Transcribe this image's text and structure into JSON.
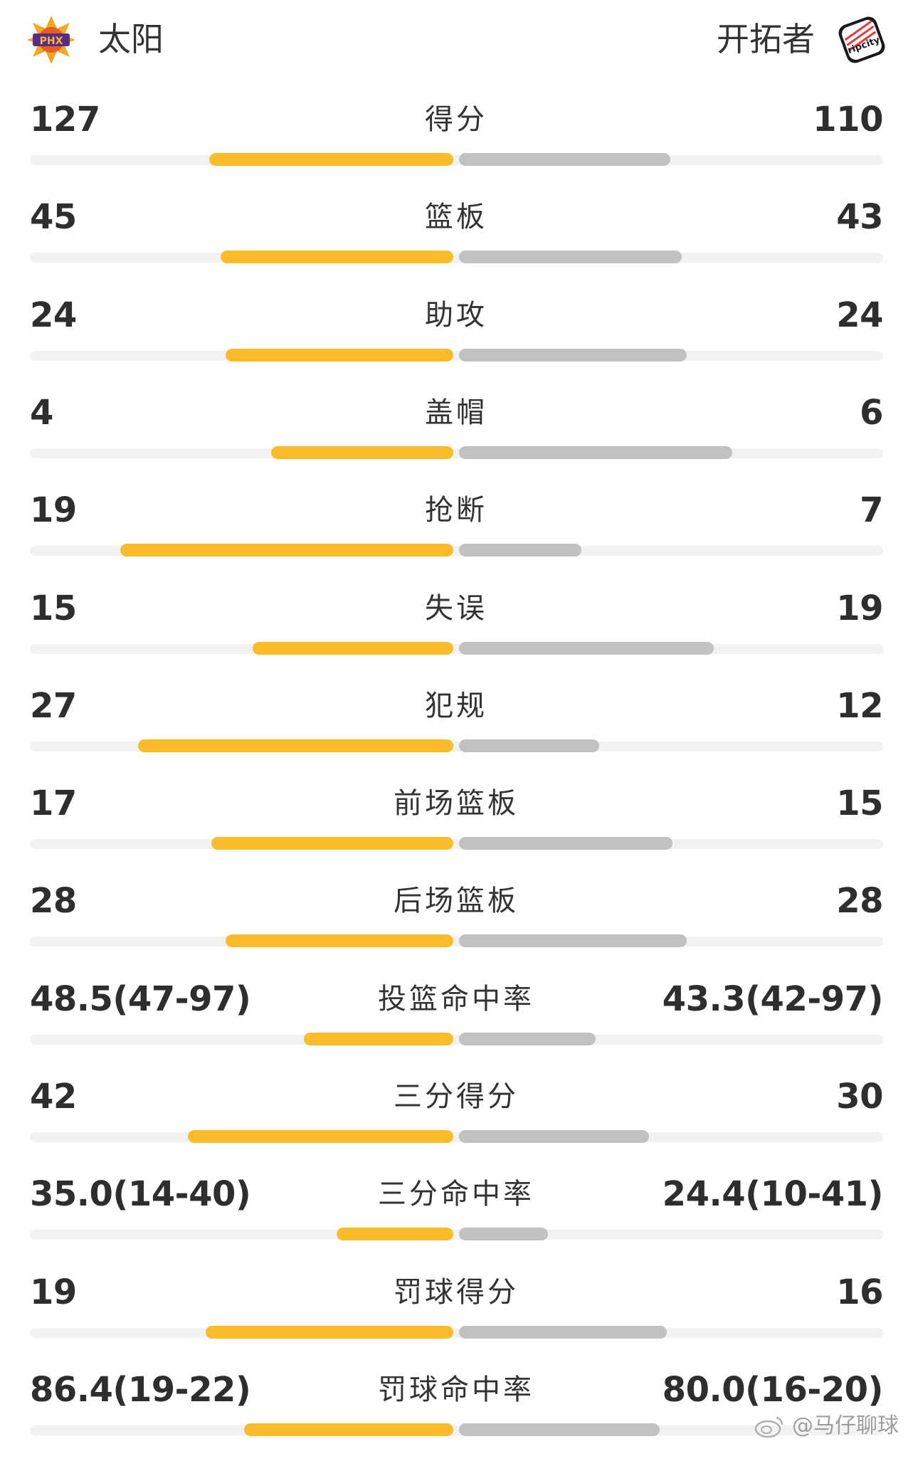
{
  "header": {
    "home_team": "太阳",
    "away_team": "开拓者",
    "home_logo_text": "PHX",
    "away_logo_text": "ripcity"
  },
  "colors": {
    "home_bar": "#fbbc2c",
    "away_bar": "#c1c1c1",
    "track": "#f2f2f2"
  },
  "stats": [
    {
      "label": "得分",
      "home": "127",
      "away": "110",
      "home_share": 0.536,
      "away_share": 0.464
    },
    {
      "label": "篮板",
      "home": "45",
      "away": "43",
      "home_share": 0.511,
      "away_share": 0.489
    },
    {
      "label": "助攻",
      "home": "24",
      "away": "24",
      "home_share": 0.5,
      "away_share": 0.5
    },
    {
      "label": "盖帽",
      "home": "4",
      "away": "6",
      "home_share": 0.4,
      "away_share": 0.6
    },
    {
      "label": "抢断",
      "home": "19",
      "away": "7",
      "home_share": 0.731,
      "away_share": 0.269
    },
    {
      "label": "失误",
      "home": "15",
      "away": "19",
      "home_share": 0.441,
      "away_share": 0.559
    },
    {
      "label": "犯规",
      "home": "27",
      "away": "12",
      "home_share": 0.692,
      "away_share": 0.308
    },
    {
      "label": "前场篮板",
      "home": "17",
      "away": "15",
      "home_share": 0.531,
      "away_share": 0.469
    },
    {
      "label": "后场篮板",
      "home": "28",
      "away": "28",
      "home_share": 0.5,
      "away_share": 0.5
    },
    {
      "label": "投篮命中率",
      "home": "48.5(47-97)",
      "away": "43.3(42-97)",
      "home_share": 0.328,
      "away_share": 0.3
    },
    {
      "label": "三分得分",
      "home": "42",
      "away": "30",
      "home_share": 0.583,
      "away_share": 0.417
    },
    {
      "label": "三分命中率",
      "home": "35.0(14-40)",
      "away": "24.4(10-41)",
      "home_share": 0.256,
      "away_share": 0.195
    },
    {
      "label": "罚球得分",
      "home": "19",
      "away": "16",
      "home_share": 0.543,
      "away_share": 0.457
    },
    {
      "label": "罚球命中率",
      "home": "86.4(19-22)",
      "away": "80.0(16-20)",
      "home_share": 0.459,
      "away_share": 0.441
    }
  ],
  "watermark": {
    "icon": "weibo-icon",
    "text": "@马仔聊球"
  }
}
